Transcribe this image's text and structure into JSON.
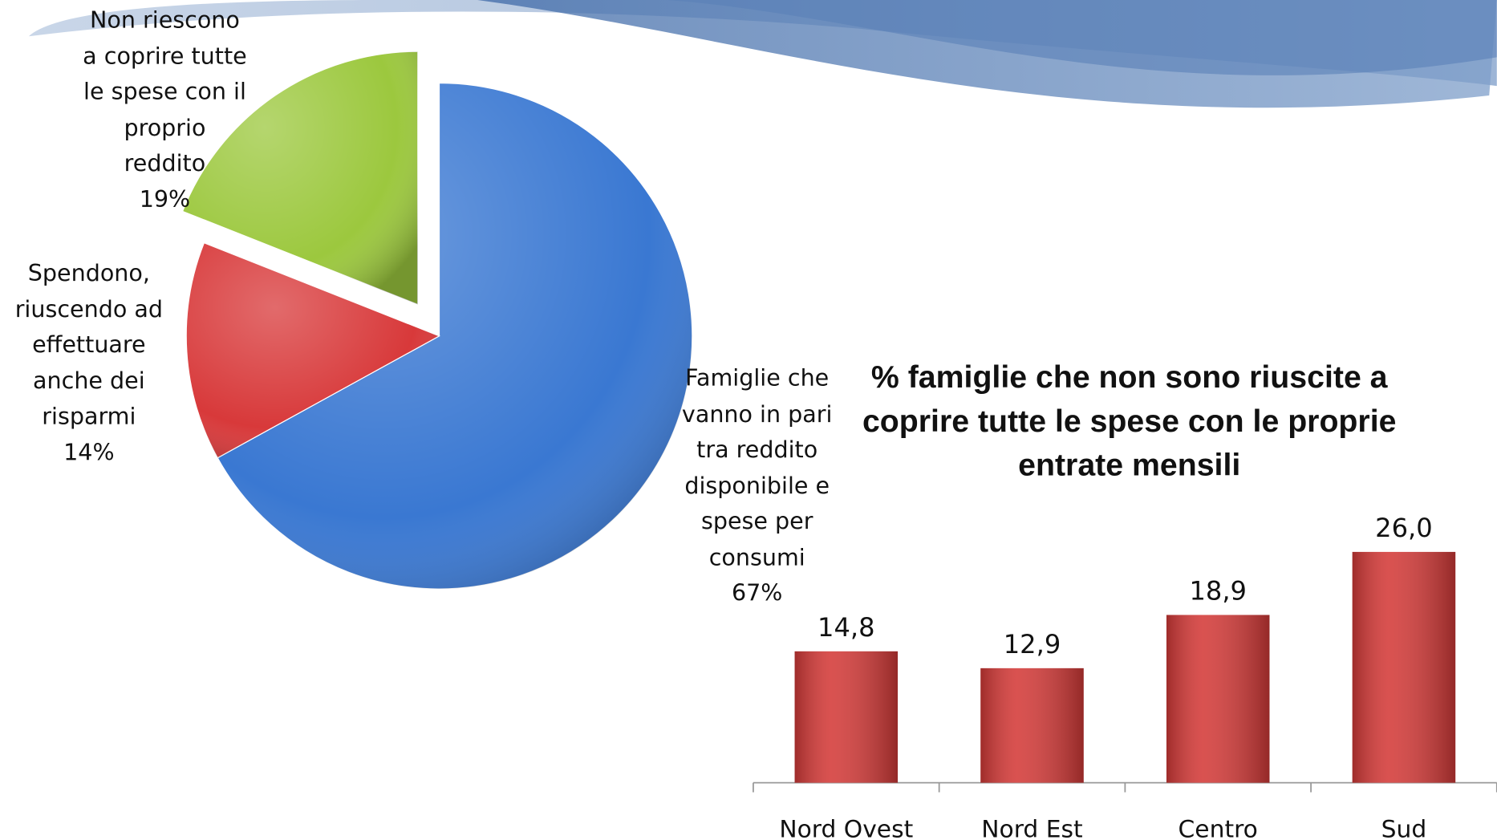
{
  "chart_data": [
    {
      "type": "pie",
      "categories": [
        "Famiglie che vanno in pari tra reddito disponibile e spese per consumi",
        "Spendono, riuscendo ad effettuare anche dei risparmi",
        "Non riescono a coprire tutte le spese con il proprio reddito"
      ],
      "values": [
        67,
        14,
        19
      ],
      "value_labels": [
        "67%",
        "14%",
        "19%"
      ],
      "colors": [
        "#3a78d2",
        "#d8393a",
        "#9cc83e"
      ]
    },
    {
      "type": "bar",
      "title": "% famiglie che non sono riuscite a coprire tutte le spese con le proprie entrate mensili",
      "categories": [
        "Nord Ovest",
        "Nord Est",
        "Centro",
        "Sud"
      ],
      "values": [
        14.8,
        12.9,
        18.9,
        26.0
      ],
      "value_labels": [
        "14,8",
        "12,9",
        "18,9",
        "26,0"
      ],
      "color": "#d43a38"
    }
  ]
}
